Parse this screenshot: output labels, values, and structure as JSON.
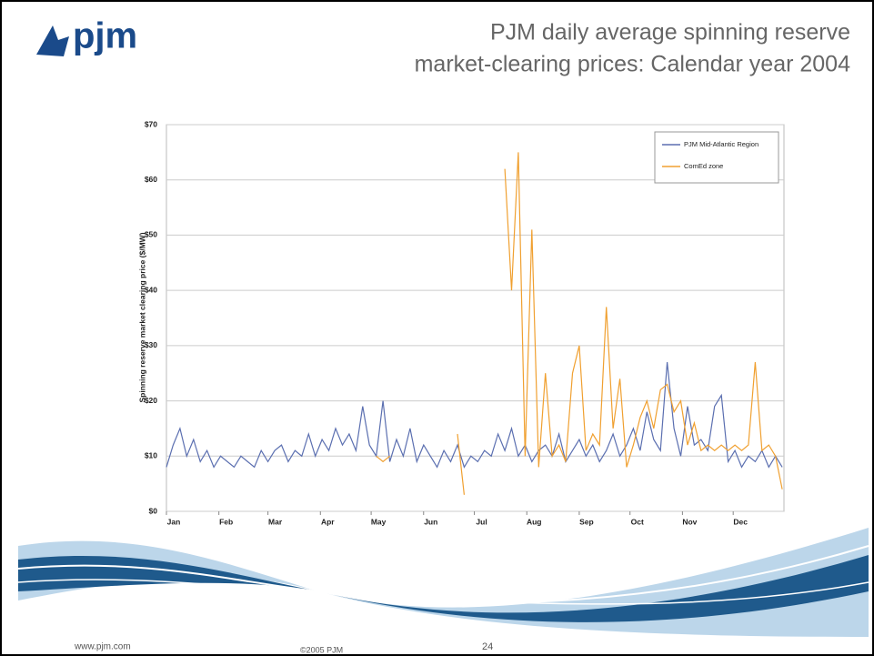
{
  "header": {
    "logo": "pjm",
    "title_lines": [
      "PJM daily average spinning reserve",
      "market-clearing prices: Calendar year 2004"
    ]
  },
  "chart_data": {
    "type": "line",
    "ylabel": "Spinning reserve market clearing price ($/MW)",
    "xlim": [
      1,
      366
    ],
    "xticks": [
      {
        "value": 1,
        "label": "Jan"
      },
      {
        "value": 32,
        "label": "Feb"
      },
      {
        "value": 61,
        "label": "Mar"
      },
      {
        "value": 92,
        "label": "Apr"
      },
      {
        "value": 122,
        "label": "May"
      },
      {
        "value": 153,
        "label": "Jun"
      },
      {
        "value": 183,
        "label": "Jul"
      },
      {
        "value": 214,
        "label": "Aug"
      },
      {
        "value": 245,
        "label": "Sep"
      },
      {
        "value": 275,
        "label": "Oct"
      },
      {
        "value": 306,
        "label": "Nov"
      },
      {
        "value": 336,
        "label": "Dec"
      }
    ],
    "ylim": [
      0,
      70
    ],
    "yticks": [
      {
        "value": 0,
        "label": "$0"
      },
      {
        "value": 10,
        "label": "$10"
      },
      {
        "value": 20,
        "label": "$20"
      },
      {
        "value": 30,
        "label": "$30"
      },
      {
        "value": 40,
        "label": "$40"
      },
      {
        "value": 50,
        "label": "$50"
      },
      {
        "value": 60,
        "label": "$60"
      },
      {
        "value": 70,
        "label": "$70"
      }
    ],
    "grid": true,
    "legend": "upper right",
    "x": [
      1,
      5,
      9,
      13,
      17,
      21,
      25,
      29,
      33,
      37,
      41,
      45,
      49,
      53,
      57,
      61,
      65,
      69,
      73,
      77,
      81,
      85,
      89,
      93,
      97,
      101,
      105,
      109,
      113,
      117,
      121,
      125,
      129,
      133,
      137,
      141,
      145,
      149,
      153,
      157,
      161,
      165,
      169,
      173,
      177,
      181,
      185,
      189,
      193,
      197,
      201,
      205,
      209,
      213,
      217,
      221,
      225,
      229,
      233,
      237,
      241,
      245,
      249,
      253,
      257,
      261,
      265,
      269,
      273,
      277,
      281,
      285,
      289,
      293,
      297,
      301,
      305,
      309,
      313,
      317,
      321,
      325,
      329,
      333,
      337,
      341,
      345,
      349,
      353,
      357,
      361,
      365
    ],
    "series": [
      {
        "name": "PJM Mid-Atlantic Region",
        "color": "#5b6fb0",
        "values": [
          8,
          12,
          15,
          10,
          13,
          9,
          11,
          8,
          10,
          9,
          8,
          10,
          9,
          8,
          11,
          9,
          11,
          12,
          9,
          11,
          10,
          14,
          10,
          13,
          11,
          15,
          12,
          14,
          11,
          19,
          12,
          10,
          20,
          9,
          13,
          10,
          15,
          9,
          12,
          10,
          8,
          11,
          9,
          12,
          8,
          10,
          9,
          11,
          10,
          14,
          11,
          15,
          10,
          12,
          9,
          11,
          12,
          10,
          14,
          9,
          11,
          13,
          10,
          12,
          9,
          11,
          14,
          10,
          12,
          15,
          11,
          18,
          13,
          11,
          27,
          15,
          10,
          19,
          12,
          13,
          11,
          19,
          21,
          9,
          11,
          8,
          10,
          9,
          11,
          8,
          10,
          8
        ]
      },
      {
        "name": "ComEd zone",
        "color": "#f0a030",
        "values": [
          null,
          null,
          null,
          null,
          null,
          null,
          null,
          null,
          null,
          null,
          null,
          null,
          null,
          null,
          null,
          null,
          null,
          null,
          null,
          null,
          null,
          null,
          null,
          null,
          null,
          null,
          null,
          null,
          null,
          null,
          null,
          10,
          9,
          10,
          null,
          null,
          null,
          null,
          null,
          null,
          null,
          null,
          null,
          14,
          3,
          null,
          null,
          null,
          null,
          null,
          62,
          40,
          65,
          10,
          51,
          8,
          25,
          10,
          12,
          9,
          25,
          30,
          11,
          14,
          12,
          37,
          15,
          24,
          8,
          12,
          17,
          20,
          15,
          22,
          23,
          18,
          20,
          12,
          16,
          11,
          12,
          11,
          12,
          11,
          12,
          11,
          12,
          27,
          11,
          12,
          10,
          4
        ]
      }
    ]
  },
  "footer": {
    "url": "www.pjm.com",
    "copyright": "©2005 PJM",
    "page": "24"
  }
}
